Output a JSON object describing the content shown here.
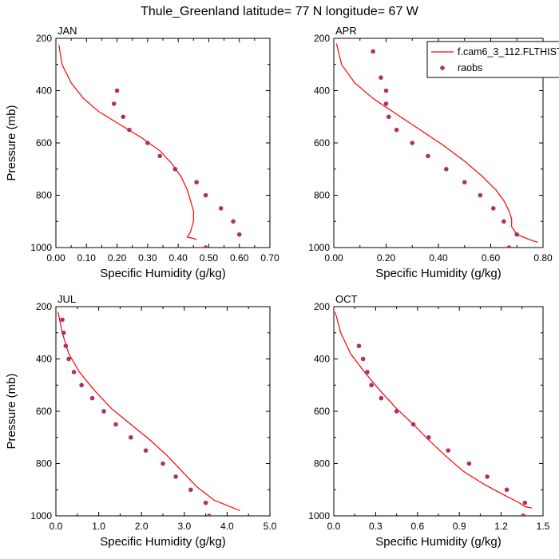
{
  "title": "Thule_Greenland  latitude= 77 N longitude= 67 W",
  "legend": {
    "placement": "top-right of APR panel",
    "model_label": "f.cam6_3_112.FLTHIST",
    "obs_label": "raobs"
  },
  "colors": {
    "model_line": "#ff0000",
    "obs_marker": "#b03060"
  },
  "chart_data": [
    {
      "type": "line",
      "panel_label": "JAN",
      "xlabel": "Specific Humidity (g/kg)",
      "ylabel": "Pressure (mb)",
      "xlim": [
        0,
        0.7
      ],
      "ylim": [
        1000,
        200
      ],
      "xticks": [
        "0.00",
        "0.10",
        "0.20",
        "0.30",
        "0.40",
        "0.50",
        "0.60",
        "0.70"
      ],
      "xtick_values": [
        0,
        0.1,
        0.2,
        0.3,
        0.4,
        0.5,
        0.6,
        0.7
      ],
      "yticks": [
        "200",
        "400",
        "600",
        "800",
        "1000"
      ],
      "ytick_values": [
        200,
        400,
        600,
        800,
        1000
      ],
      "series": [
        {
          "name": "f.cam6_3_112.FLTHIST",
          "kind": "line",
          "x": [
            0.01,
            0.02,
            0.05,
            0.09,
            0.14,
            0.21,
            0.28,
            0.34,
            0.38,
            0.41,
            0.43,
            0.44,
            0.45,
            0.45,
            0.44,
            0.43,
            0.45,
            0.46
          ],
          "y": [
            225,
            300,
            370,
            430,
            480,
            530,
            580,
            630,
            680,
            730,
            780,
            820,
            860,
            900,
            940,
            960,
            965,
            970
          ]
        },
        {
          "name": "raobs",
          "kind": "scatter",
          "x": [
            0.2,
            0.19,
            0.22,
            0.24,
            0.3,
            0.34,
            0.39,
            0.46,
            0.49,
            0.54,
            0.58,
            0.6,
            0.49
          ],
          "y": [
            400,
            450,
            500,
            550,
            600,
            650,
            700,
            750,
            800,
            850,
            900,
            950,
            1000
          ]
        }
      ]
    },
    {
      "type": "line",
      "panel_label": "APR",
      "xlabel": "Specific Humidity (g/kg)",
      "ylabel": "",
      "xlim": [
        0,
        0.8
      ],
      "ylim": [
        1000,
        200
      ],
      "xticks": [
        "0.00",
        "0.20",
        "0.40",
        "0.60",
        "0.80"
      ],
      "xtick_values": [
        0,
        0.2,
        0.4,
        0.6,
        0.8
      ],
      "yticks": [
        "200",
        "400",
        "600",
        "800",
        "1000"
      ],
      "ytick_values": [
        200,
        400,
        600,
        800,
        1000
      ],
      "series": [
        {
          "name": "f.cam6_3_112.FLTHIST",
          "kind": "line",
          "x": [
            0.01,
            0.03,
            0.08,
            0.15,
            0.24,
            0.33,
            0.42,
            0.5,
            0.57,
            0.62,
            0.65,
            0.67,
            0.68,
            0.68,
            0.7,
            0.75,
            0.78
          ],
          "y": [
            220,
            300,
            370,
            430,
            490,
            550,
            610,
            670,
            730,
            780,
            820,
            860,
            890,
            920,
            950,
            970,
            980
          ]
        },
        {
          "name": "raobs",
          "kind": "scatter",
          "x": [
            0.15,
            0.18,
            0.2,
            0.2,
            0.21,
            0.24,
            0.3,
            0.36,
            0.43,
            0.5,
            0.56,
            0.61,
            0.65,
            0.7,
            0.67
          ],
          "y": [
            250,
            350,
            400,
            450,
            500,
            550,
            600,
            650,
            700,
            750,
            800,
            850,
            900,
            950,
            1000
          ]
        }
      ]
    },
    {
      "type": "line",
      "panel_label": "JUL",
      "xlabel": "Specific Humidity (g/kg)",
      "ylabel": "Pressure (mb)",
      "xlim": [
        0,
        5
      ],
      "ylim": [
        1000,
        200
      ],
      "xticks": [
        "0.0",
        "1.0",
        "2.0",
        "3.0",
        "4.0",
        "5.0"
      ],
      "xtick_values": [
        0,
        1,
        2,
        3,
        4,
        5
      ],
      "yticks": [
        "200",
        "400",
        "600",
        "800",
        "1000"
      ],
      "ytick_values": [
        200,
        400,
        600,
        800,
        1000
      ],
      "series": [
        {
          "name": "f.cam6_3_112.FLTHIST",
          "kind": "line",
          "x": [
            0.05,
            0.15,
            0.3,
            0.55,
            0.9,
            1.3,
            1.75,
            2.2,
            2.6,
            2.95,
            3.3,
            3.7,
            4.0,
            4.3
          ],
          "y": [
            220,
            300,
            380,
            450,
            520,
            590,
            650,
            710,
            770,
            830,
            890,
            940,
            960,
            980
          ]
        },
        {
          "name": "raobs",
          "kind": "scatter",
          "x": [
            0.15,
            0.18,
            0.23,
            0.3,
            0.42,
            0.6,
            0.85,
            1.12,
            1.4,
            1.75,
            2.1,
            2.5,
            2.8,
            3.15,
            3.5,
            3.58
          ],
          "y": [
            250,
            300,
            350,
            400,
            450,
            500,
            550,
            600,
            650,
            700,
            750,
            800,
            850,
            900,
            950,
            1000
          ]
        }
      ]
    },
    {
      "type": "line",
      "panel_label": "OCT",
      "xlabel": "Specific Humidity (g/kg)",
      "ylabel": "",
      "xlim": [
        0,
        1.5
      ],
      "ylim": [
        1000,
        200
      ],
      "xticks": [
        "0.0",
        "0.3",
        "0.6",
        "0.9",
        "1.2",
        "1.5"
      ],
      "xtick_values": [
        0,
        0.3,
        0.6,
        0.9,
        1.2,
        1.5
      ],
      "yticks": [
        "200",
        "400",
        "600",
        "800",
        "1000"
      ],
      "ytick_values": [
        200,
        400,
        600,
        800,
        1000
      ],
      "series": [
        {
          "name": "f.cam6_3_112.FLTHIST",
          "kind": "line",
          "x": [
            0.01,
            0.05,
            0.12,
            0.22,
            0.33,
            0.45,
            0.57,
            0.68,
            0.8,
            0.93,
            1.08,
            1.22,
            1.33,
            1.37,
            1.42
          ],
          "y": [
            220,
            300,
            380,
            450,
            520,
            590,
            650,
            710,
            770,
            830,
            880,
            920,
            950,
            965,
            970
          ]
        },
        {
          "name": "raobs",
          "kind": "scatter",
          "x": [
            0.18,
            0.21,
            0.24,
            0.27,
            0.34,
            0.45,
            0.57,
            0.68,
            0.82,
            0.97,
            1.1,
            1.24,
            1.37,
            1.36
          ],
          "y": [
            350,
            400,
            450,
            500,
            550,
            600,
            650,
            700,
            750,
            800,
            850,
            900,
            950,
            1000
          ]
        }
      ]
    }
  ]
}
